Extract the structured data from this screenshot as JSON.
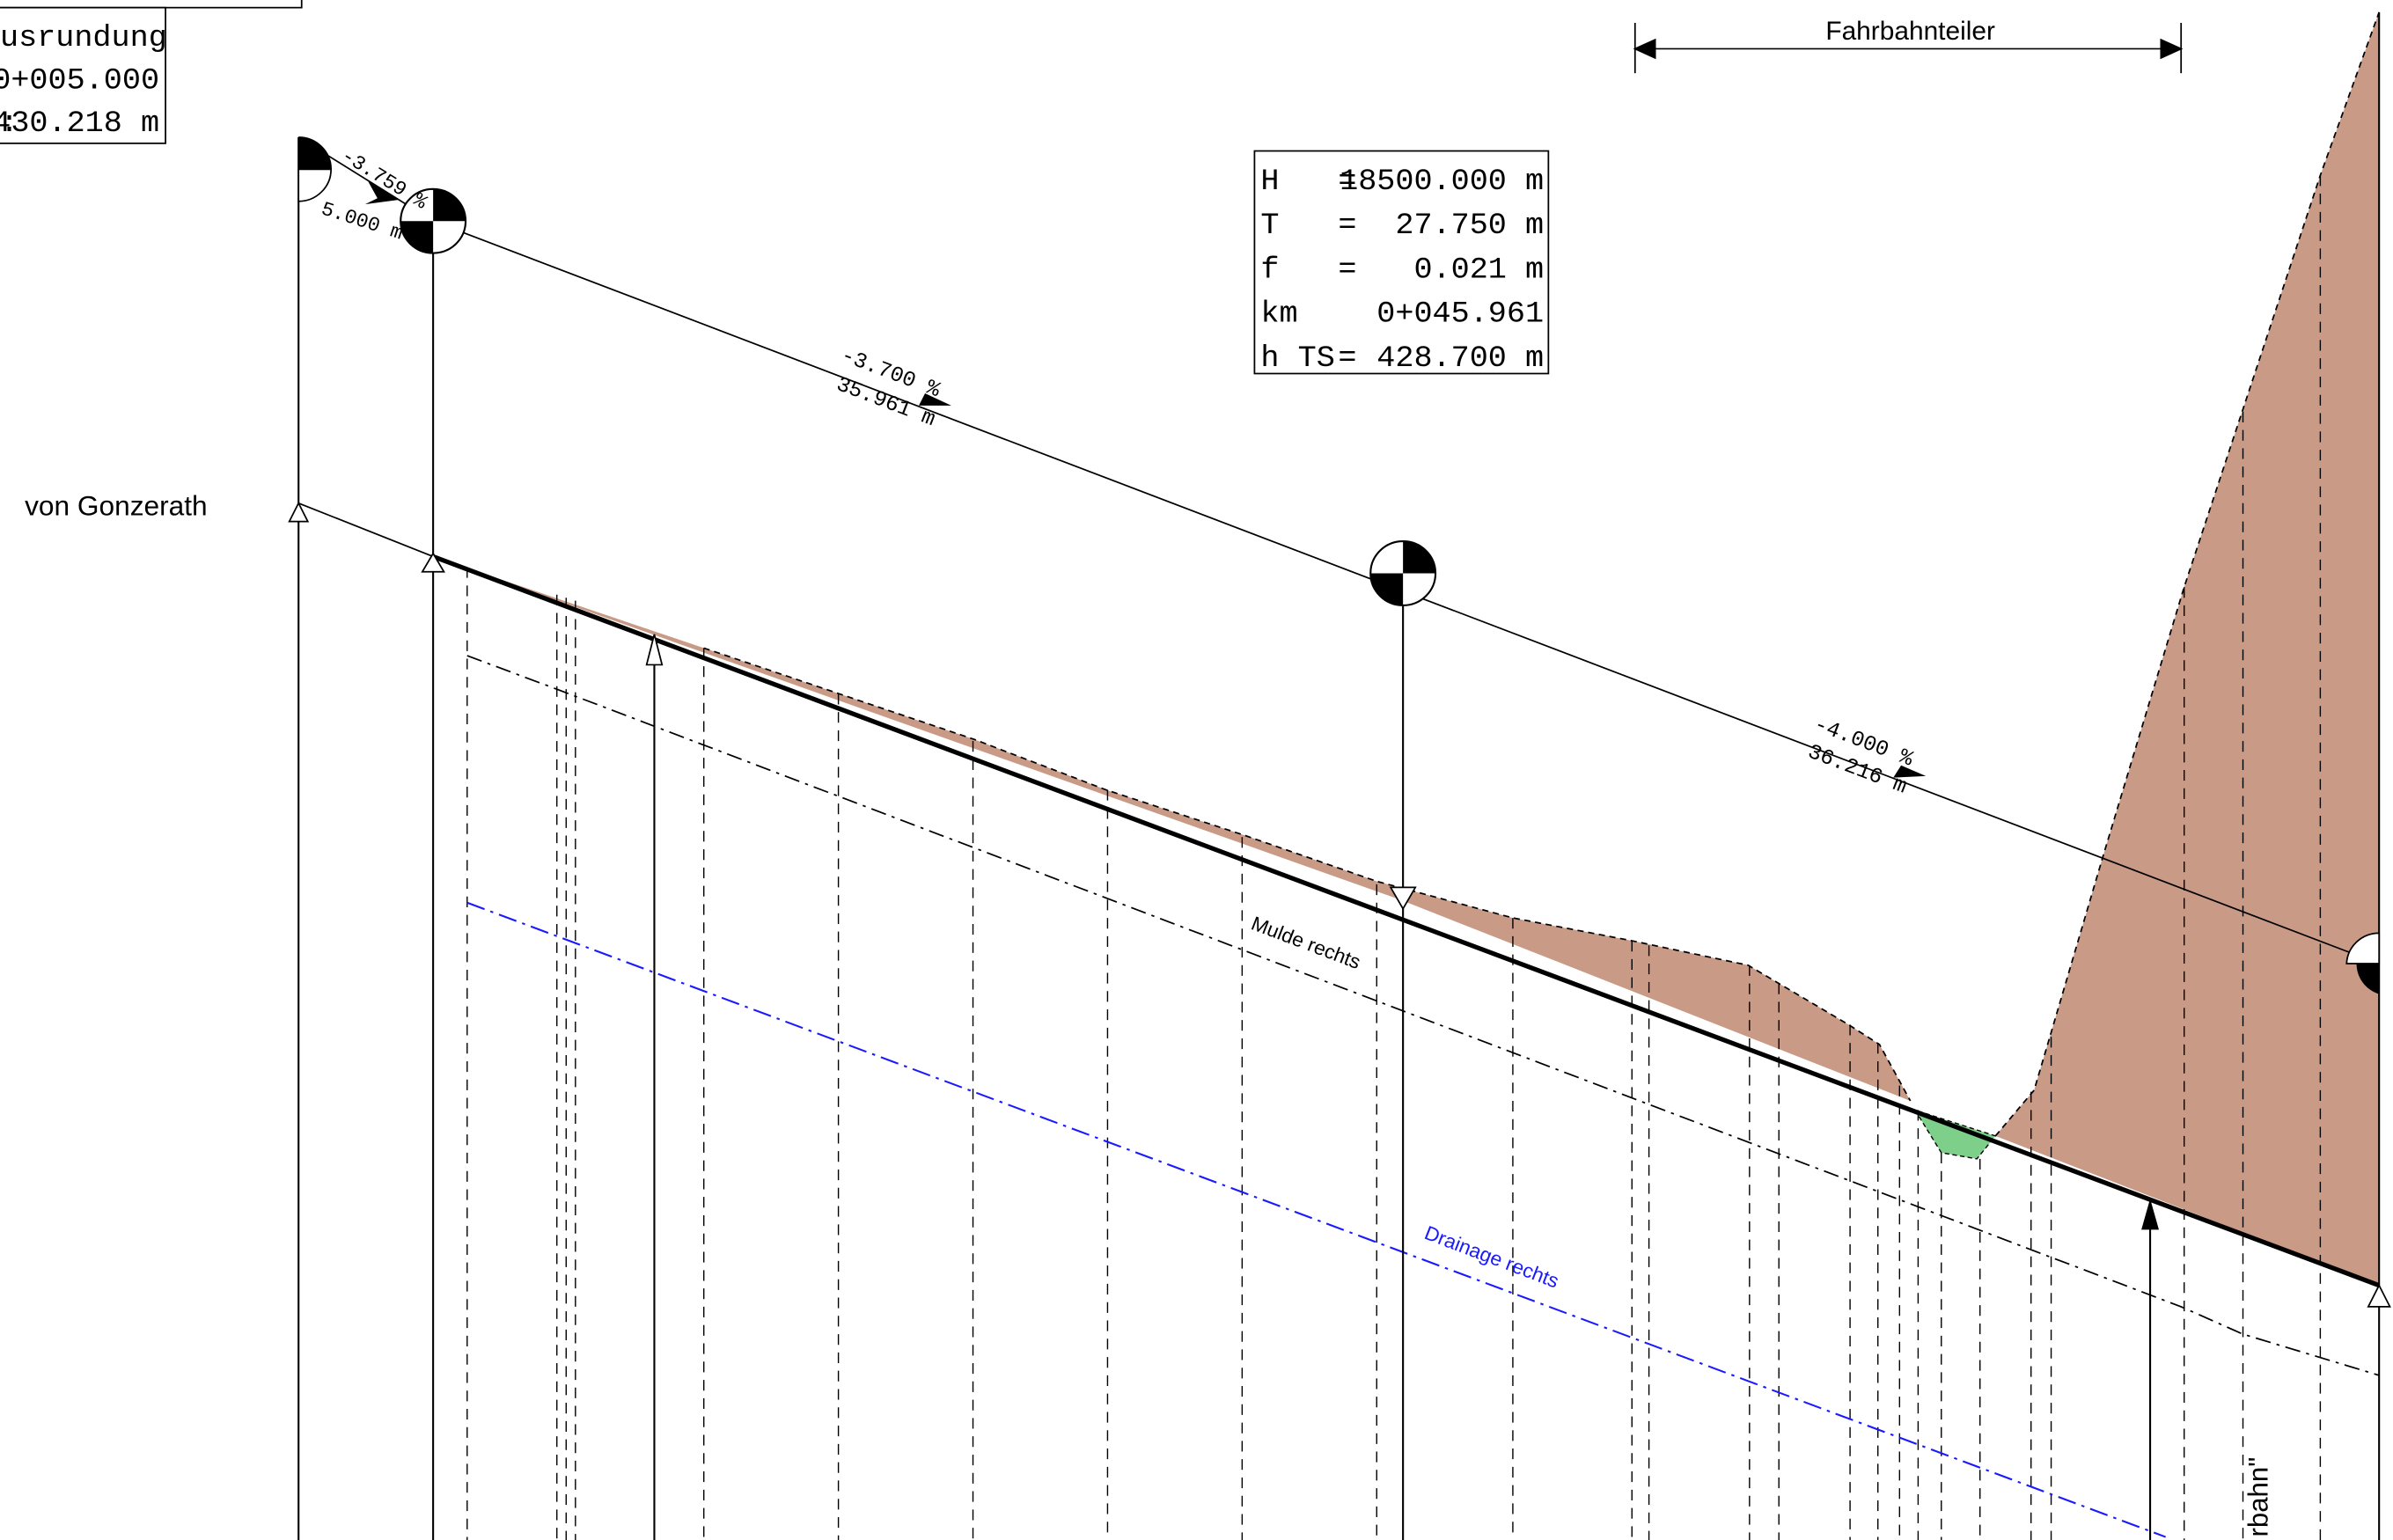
{
  "drawing": {
    "origin_label": "von Gonzerath",
    "top_dimension_label": "Fahrbahnteiler",
    "left_box": {
      "title": "usrundung",
      "km": "0+005.000",
      "height_prefix": ":",
      "height": "430.218 m"
    },
    "curve_box": {
      "rows": [
        {
          "key": "H",
          "eq": "=",
          "value": "18500.000 m"
        },
        {
          "key": "T",
          "eq": "=",
          "value": "27.750 m"
        },
        {
          "key": "f",
          "eq": "=",
          "value": "0.021 m"
        },
        {
          "key": "km",
          "eq": "",
          "value": "0+045.961"
        },
        {
          "key": "h TS",
          "eq": "=",
          "value": "428.700 m"
        }
      ]
    },
    "slopes": [
      {
        "grade": "-3.759 %",
        "length": "5.000 m"
      },
      {
        "grade": "-3.700 %",
        "length": "35.961 m"
      },
      {
        "grade": "-4.000 %",
        "length": "36.216 m"
      }
    ],
    "line_labels": {
      "mulde": "Mulde rechts",
      "drainage": "Drainage rechts",
      "partial_bottom": "rbahn\""
    },
    "colors": {
      "terrain_fill": "#c99a86",
      "green_fill": "#7ecf8a",
      "drainage_line": "#1a1aff",
      "ink": "#000000"
    }
  }
}
